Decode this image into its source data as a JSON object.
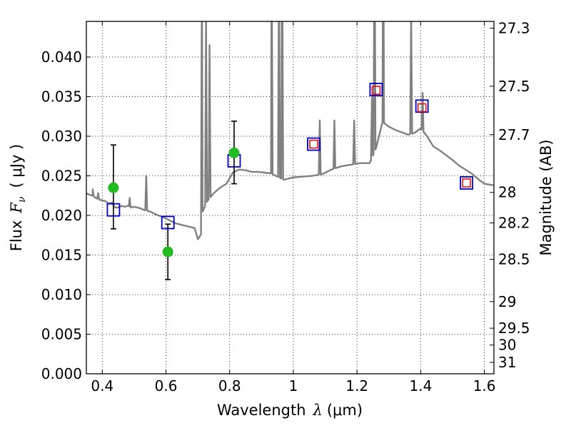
{
  "chart_data": {
    "type": "line",
    "xlabel": "Wavelength  λ (μm)",
    "ylabel": "Flux  F_ν  ( μJy )",
    "ylabel_parts": {
      "prefix": "Flux",
      "symbol": "F",
      "subscript": "ν",
      "unit": "( μJy )"
    },
    "xlabel_parts": {
      "prefix": "Wavelength",
      "symbol": "λ",
      "unit": "(μm)"
    },
    "y2label": "Magnitude (AB)",
    "xlim": [
      0.35,
      1.63
    ],
    "ylim": [
      0.0,
      0.0445
    ],
    "grid": true,
    "xticks": [
      0.4,
      0.6,
      0.8,
      1.0,
      1.2,
      1.4,
      1.6
    ],
    "xtick_labels": [
      "0.4",
      "0.6",
      "0.8",
      "1",
      "1.2",
      "1.4",
      "1.6"
    ],
    "yticks": [
      0.0,
      0.005,
      0.01,
      0.015,
      0.02,
      0.025,
      0.03,
      0.035,
      0.04
    ],
    "ytick_labels": [
      "0.000",
      "0.005",
      "0.010",
      "0.015",
      "0.020",
      "0.025",
      "0.030",
      "0.035",
      "0.040"
    ],
    "magnitude_ticks": [
      {
        "label": "27.3",
        "mag": 27.3
      },
      {
        "label": "27.5",
        "mag": 27.5
      },
      {
        "label": "27.7",
        "mag": 27.7
      },
      {
        "label": "28",
        "mag": 28.0
      },
      {
        "label": "28.2",
        "mag": 28.2
      },
      {
        "label": "28.5",
        "mag": 28.5
      },
      {
        "label": "29",
        "mag": 29.0
      },
      {
        "label": "29.5",
        "mag": 29.5
      },
      {
        "label": "30",
        "mag": 30.0
      },
      {
        "label": "31",
        "mag": 31.0
      }
    ],
    "colors": {
      "sed": "#808080",
      "observed": "#22bb22",
      "model_blue": "#0000cc",
      "model_red": "#ee0000",
      "errorbar": "#000000",
      "grid": "#000000"
    },
    "sed_continuum": {
      "x": [
        0.35,
        0.36,
        0.37,
        0.38,
        0.39,
        0.4,
        0.41,
        0.42,
        0.43,
        0.44,
        0.45,
        0.46,
        0.47,
        0.48,
        0.49,
        0.5,
        0.51,
        0.52,
        0.53,
        0.55,
        0.57,
        0.59,
        0.61,
        0.63,
        0.65,
        0.67,
        0.69,
        0.7,
        0.71,
        0.715,
        0.73,
        0.75,
        0.77,
        0.79,
        0.81,
        0.83,
        0.85,
        0.87,
        0.89,
        0.91,
        0.93,
        0.97,
        1.0,
        1.03,
        1.06,
        1.09,
        1.12,
        1.15,
        1.18,
        1.21,
        1.24,
        1.26,
        1.28,
        1.3,
        1.32,
        1.34,
        1.36,
        1.38,
        1.4,
        1.42,
        1.44,
        1.46,
        1.48,
        1.5,
        1.52,
        1.54,
        1.56,
        1.58,
        1.6,
        1.63
      ],
      "y": [
        0.0228,
        0.0226,
        0.0225,
        0.0222,
        0.022,
        0.0219,
        0.0218,
        0.0215,
        0.0216,
        0.021,
        0.021,
        0.0212,
        0.0211,
        0.0212,
        0.021,
        0.0211,
        0.021,
        0.0209,
        0.0207,
        0.0205,
        0.0201,
        0.0198,
        0.0194,
        0.019,
        0.0188,
        0.0186,
        0.0184,
        0.017,
        0.0176,
        0.0205,
        0.0218,
        0.0228,
        0.0235,
        0.024,
        0.0254,
        0.0258,
        0.0257,
        0.0255,
        0.0255,
        0.0254,
        0.0253,
        0.0245,
        0.0248,
        0.0249,
        0.025,
        0.0252,
        0.0258,
        0.0262,
        0.0264,
        0.0266,
        0.0266,
        0.0285,
        0.0318,
        0.0312,
        0.0308,
        0.0305,
        0.0302,
        0.0304,
        0.031,
        0.03,
        0.0287,
        0.0282,
        0.0276,
        0.027,
        0.0263,
        0.0258,
        0.0253,
        0.0246,
        0.024,
        0.0238
      ]
    },
    "sed_emission_lines": [
      {
        "x": 0.37,
        "y": 0.0233
      },
      {
        "x": 0.387,
        "y": 0.0228
      },
      {
        "x": 0.486,
        "y": 0.0222
      },
      {
        "x": 0.538,
        "y": 0.025
      },
      {
        "x": 0.713,
        "y": 0.052
      },
      {
        "x": 0.726,
        "y": 0.045
      },
      {
        "x": 0.737,
        "y": 0.0415
      },
      {
        "x": 0.932,
        "y": 0.055
      },
      {
        "x": 0.955,
        "y": 0.052
      },
      {
        "x": 0.965,
        "y": 0.055
      },
      {
        "x": 1.083,
        "y": 0.032
      },
      {
        "x": 1.129,
        "y": 0.032
      },
      {
        "x": 1.191,
        "y": 0.032
      },
      {
        "x": 1.247,
        "y": 0.035
      },
      {
        "x": 1.255,
        "y": 0.06
      },
      {
        "x": 1.282,
        "y": 0.06
      },
      {
        "x": 1.37,
        "y": 0.0455
      },
      {
        "x": 1.406,
        "y": 0.0355
      }
    ],
    "observed_points": [
      {
        "x": 0.435,
        "y": 0.0235,
        "yerr_low": 0.0183,
        "yerr_high": 0.0289
      },
      {
        "x": 0.606,
        "y": 0.0154,
        "yerr_low": 0.0119,
        "yerr_high": 0.0189
      },
      {
        "x": 0.814,
        "y": 0.0279,
        "yerr_low": 0.024,
        "yerr_high": 0.0319
      }
    ],
    "model_points_blue": [
      {
        "x": 0.435,
        "y": 0.0207
      },
      {
        "x": 0.606,
        "y": 0.0191
      },
      {
        "x": 0.814,
        "y": 0.0269
      },
      {
        "x": 1.064,
        "y": 0.029
      },
      {
        "x": 1.26,
        "y": 0.0359
      },
      {
        "x": 1.404,
        "y": 0.0338
      },
      {
        "x": 1.544,
        "y": 0.0241
      }
    ],
    "model_points_red": [
      {
        "x": 1.064,
        "y": 0.029
      },
      {
        "x": 1.26,
        "y": 0.0358
      },
      {
        "x": 1.404,
        "y": 0.0336
      },
      {
        "x": 1.544,
        "y": 0.0241
      }
    ]
  }
}
